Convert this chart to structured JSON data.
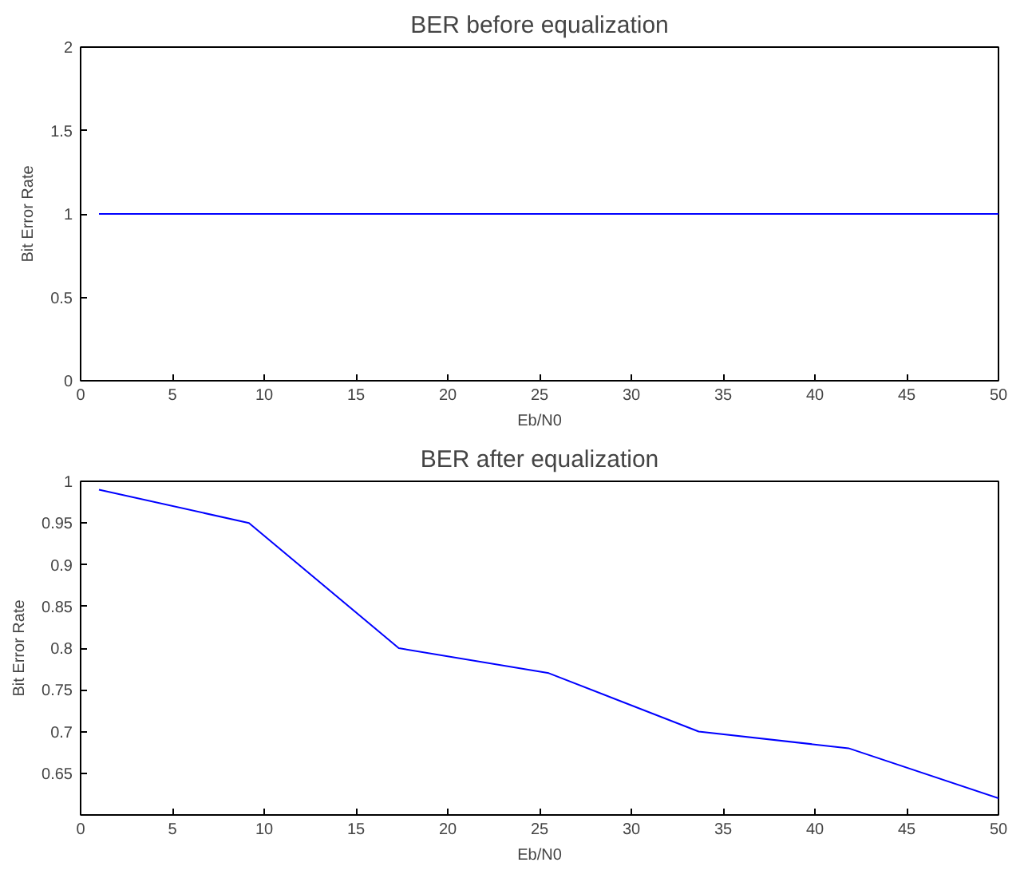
{
  "chart_data": [
    {
      "type": "line",
      "title": "BER before equalization",
      "xlabel": "Eb/N0",
      "ylabel": "Bit Error Rate",
      "x": [
        1,
        50
      ],
      "series": [
        {
          "color": "#0000ff",
          "values": [
            1,
            1
          ]
        }
      ],
      "xlim": [
        0,
        50
      ],
      "ylim": [
        0,
        2
      ],
      "xticks": [
        0,
        5,
        10,
        15,
        20,
        25,
        30,
        35,
        40,
        45,
        50
      ],
      "yticks": [
        0,
        0.5,
        1,
        1.5,
        2
      ],
      "grid": false
    },
    {
      "type": "line",
      "title": "BER after equalization",
      "xlabel": "Eb/N0",
      "ylabel": "Bit Error Rate",
      "x": [
        1,
        9.17,
        17.33,
        25.5,
        33.67,
        41.83,
        50
      ],
      "series": [
        {
          "color": "#0000ff",
          "values": [
            0.99,
            0.95,
            0.8,
            0.77,
            0.7,
            0.68,
            0.62
          ]
        }
      ],
      "xlim": [
        0,
        50
      ],
      "ylim": [
        0.6,
        1
      ],
      "xticks": [
        0,
        5,
        10,
        15,
        20,
        25,
        30,
        35,
        40,
        45,
        50
      ],
      "yticks": [
        0.65,
        0.7,
        0.75,
        0.8,
        0.85,
        0.9,
        0.95,
        1
      ],
      "grid": false
    }
  ]
}
